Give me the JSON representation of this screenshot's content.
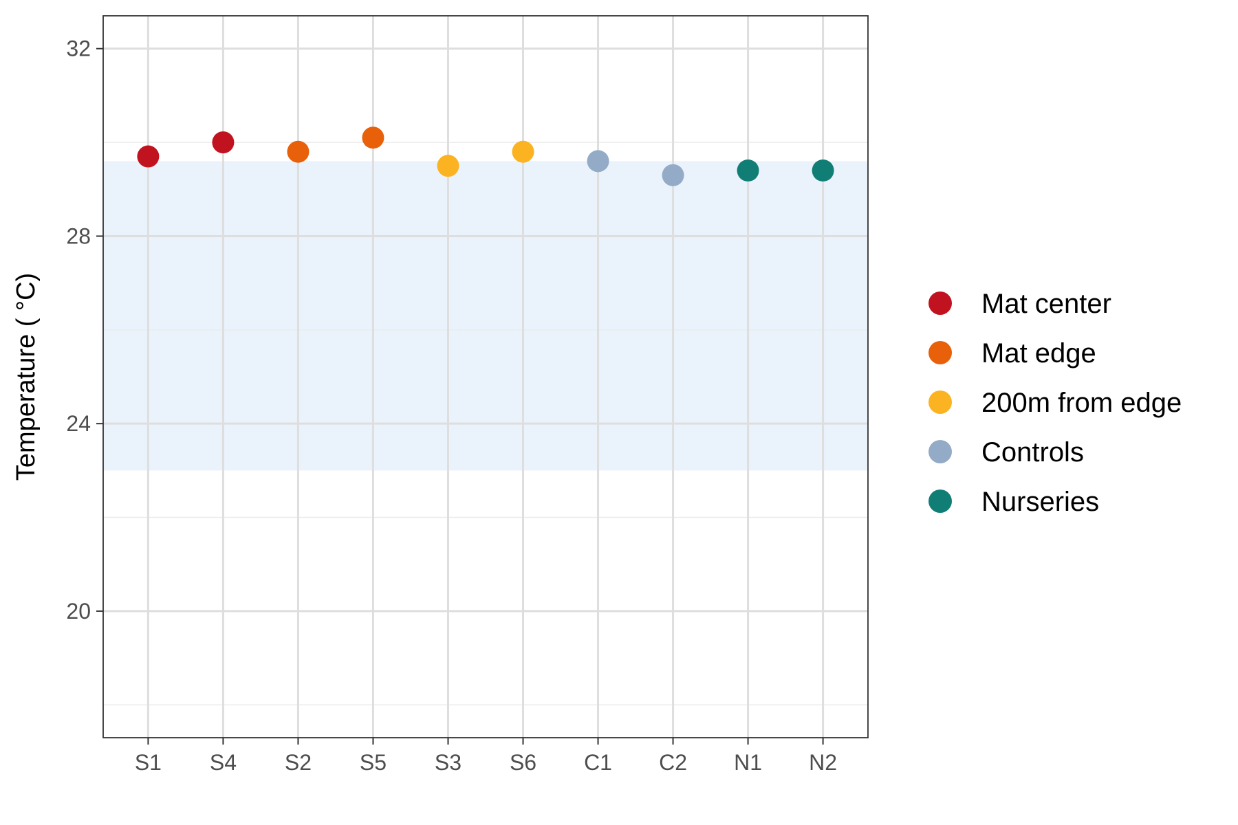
{
  "chart_data": {
    "type": "scatter",
    "categories": [
      "S1",
      "S4",
      "S2",
      "S5",
      "S3",
      "S6",
      "C1",
      "C2",
      "N1",
      "N2"
    ],
    "values": [
      29.7,
      30.0,
      29.8,
      30.1,
      29.5,
      29.8,
      29.6,
      29.3,
      29.4,
      29.4
    ],
    "groups": [
      "Mat center",
      "Mat center",
      "Mat edge",
      "Mat edge",
      "200m from edge",
      "200m from edge",
      "Controls",
      "Controls",
      "Nurseries",
      "Nurseries"
    ],
    "ylabel": "Temperature ( °C)",
    "xlabel": "",
    "ylim": [
      17.3,
      32.7
    ],
    "yticks": [
      20,
      24,
      28,
      32
    ],
    "yticks_label": [
      "20",
      "24",
      "28",
      "32"
    ],
    "shaded_band": {
      "from": 23.0,
      "to": 29.6,
      "color": "#eaf2fc"
    },
    "grid": true,
    "legend": {
      "placement": "right",
      "entries": [
        {
          "label": "Mat center",
          "color": "#c1121f"
        },
        {
          "label": "Mat edge",
          "color": "#e8600a"
        },
        {
          "label": "200m from edge",
          "color": "#fbb321"
        },
        {
          "label": "Controls",
          "color": "#93abc6"
        },
        {
          "label": "Nurseries",
          "color": "#117e76"
        }
      ]
    }
  }
}
